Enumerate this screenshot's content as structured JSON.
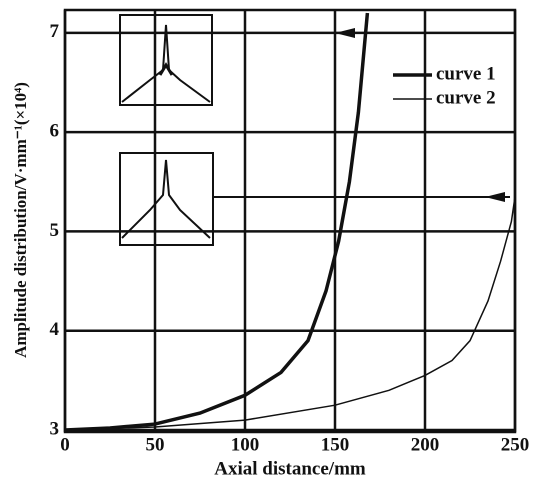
{
  "chart_data": {
    "type": "line",
    "x_label": "Axial distance/mm",
    "y_label": "Amplitude distribution/V·mm⁻¹(×10⁴)",
    "xlim": [
      0,
      250
    ],
    "xticks": [
      0,
      50,
      100,
      150,
      200,
      250
    ],
    "ylim": [
      2.98,
      7.23
    ],
    "yticks": [
      3,
      4,
      5,
      6,
      7
    ],
    "grid": true,
    "legend": "upper right",
    "series": [
      {
        "name": "curve 1",
        "color": "#111111",
        "width": 3.5,
        "x": [
          0,
          25,
          50,
          75,
          100,
          120,
          135,
          145,
          152,
          158,
          163,
          168
        ],
        "values": [
          3,
          3.02,
          3.06,
          3.17,
          3.35,
          3.58,
          3.9,
          4.4,
          4.9,
          5.5,
          6.2,
          7.2
        ]
      },
      {
        "name": "curve 2",
        "color": "#111111",
        "width": 1.5,
        "x": [
          0,
          50,
          100,
          150,
          180,
          200,
          215,
          225,
          235,
          242,
          248,
          250
        ],
        "values": [
          3,
          3.03,
          3.1,
          3.25,
          3.4,
          3.55,
          3.7,
          3.9,
          4.3,
          4.7,
          5.1,
          5.35
        ]
      }
    ]
  }
}
